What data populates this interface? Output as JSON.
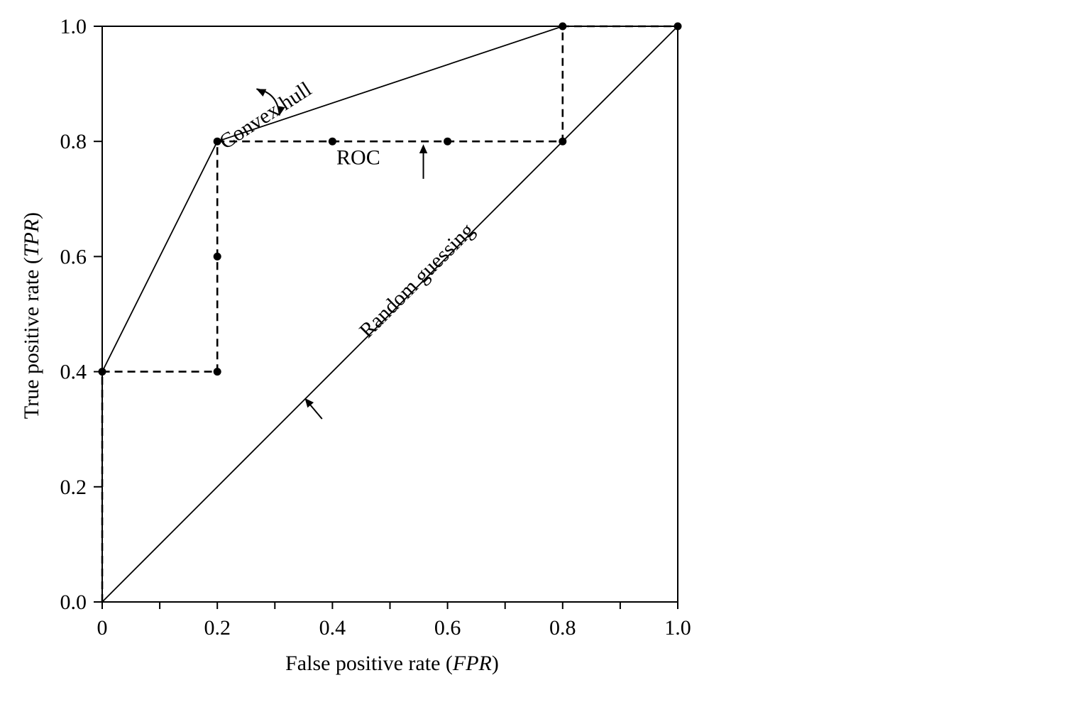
{
  "chart_data": {
    "type": "line",
    "xlabel": {
      "text": "False positive rate (",
      "italic": "FPR",
      "suffix": ")"
    },
    "ylabel": {
      "text": "True positive rate (",
      "italic": "TPR",
      "suffix": ")"
    },
    "xlim": [
      0,
      1
    ],
    "ylim": [
      0,
      1
    ],
    "x_ticks_major": [
      0,
      0.2,
      0.4,
      0.6,
      0.8,
      1.0
    ],
    "x_tick_labels": [
      "0",
      "0.2",
      "0.4",
      "0.6",
      "0.8",
      "1.0"
    ],
    "x_ticks_minor": [
      0.1,
      0.3,
      0.5,
      0.7,
      0.9
    ],
    "y_ticks": [
      0,
      0.2,
      0.4,
      0.6,
      0.8,
      1.0
    ],
    "y_tick_labels": [
      "0.0",
      "0.2",
      "0.4",
      "0.6",
      "0.8",
      "1.0"
    ],
    "grid": false,
    "series": [
      {
        "key": "roc",
        "style": "dashed",
        "x": [
          0,
          0,
          0.2,
          0.2,
          0.2,
          0.4,
          0.6,
          0.8,
          0.8,
          1.0
        ],
        "y": [
          0,
          0.4,
          0.4,
          0.6,
          0.8,
          0.8,
          0.8,
          0.8,
          1.0,
          1.0
        ],
        "markers": true
      },
      {
        "key": "convex-hull",
        "style": "solid",
        "x": [
          0,
          0.2,
          0.8,
          1.0
        ],
        "y": [
          0.4,
          0.8,
          1.0,
          1.0
        ],
        "markers": false
      },
      {
        "key": "random-guessing",
        "style": "solid",
        "x": [
          0,
          1.0
        ],
        "y": [
          0,
          1.0
        ],
        "markers": false
      }
    ],
    "annotations": [
      {
        "key": "convex-hull-label",
        "text": "Convex hull",
        "x": 0.29,
        "y": 0.835,
        "rotation_deg": -33
      },
      {
        "key": "roc-label",
        "text": "ROC",
        "x": 0.445,
        "y": 0.76,
        "rotation_deg": 0
      },
      {
        "key": "random-label",
        "text": "Random guessing",
        "x": 0.555,
        "y": 0.55,
        "rotation_deg": -45
      }
    ],
    "colors": {
      "line": "#000000",
      "background": "#ffffff"
    }
  }
}
